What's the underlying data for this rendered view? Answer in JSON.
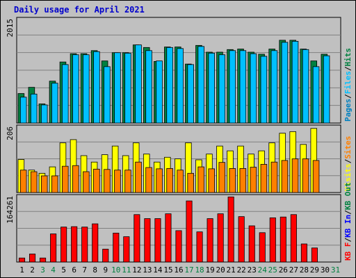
{
  "chart_data": [
    {
      "type": "bar",
      "title": "Daily usage for April 2021",
      "ymax_label": "2015",
      "ylim": [
        0,
        2015
      ],
      "grid": true,
      "legend": {
        "position": "right",
        "entries": [
          "Pages",
          "Files",
          "Hits"
        ],
        "separator": "/"
      },
      "colors": {
        "Pages": "#0080c0",
        "Files": "#00c0ff",
        "Hits": "#008040"
      },
      "categories": [
        "1",
        "2",
        "3",
        "4",
        "5",
        "6",
        "7",
        "8",
        "9",
        "10",
        "11",
        "12",
        "13",
        "14",
        "15",
        "16",
        "17",
        "18",
        "19",
        "20",
        "21",
        "22",
        "23",
        "24",
        "25",
        "26",
        "27",
        "28",
        "29",
        "30",
        "31"
      ],
      "series": [
        {
          "name": "Hits",
          "values": [
            570,
            690,
            370,
            810,
            1180,
            1340,
            1340,
            1400,
            1200,
            1360,
            1360,
            1510,
            1460,
            1190,
            1470,
            1470,
            1140,
            1500,
            1370,
            1370,
            1420,
            1430,
            1370,
            1330,
            1430,
            1600,
            1600,
            1430,
            1200,
            1330,
            0
          ]
        },
        {
          "name": "Files",
          "values": [
            500,
            560,
            350,
            770,
            1130,
            1320,
            1320,
            1380,
            1090,
            1360,
            1350,
            1510,
            1400,
            1200,
            1460,
            1440,
            1130,
            1480,
            1350,
            1320,
            1400,
            1400,
            1340,
            1290,
            1400,
            1560,
            1580,
            1420,
            1090,
            1300,
            0
          ]
        }
      ]
    },
    {
      "type": "bar",
      "ymax_label": "206",
      "ylim": [
        0,
        206
      ],
      "grid": true,
      "legend": {
        "position": "right",
        "entries": [
          "Visits",
          "Sites"
        ],
        "separator": "/"
      },
      "colors": {
        "Visits": "#ffff00",
        "Sites": "#ff8000"
      },
      "categories": [
        "1",
        "2",
        "3",
        "4",
        "5",
        "6",
        "7",
        "8",
        "9",
        "10",
        "11",
        "12",
        "13",
        "14",
        "15",
        "16",
        "17",
        "18",
        "19",
        "20",
        "21",
        "22",
        "23",
        "24",
        "25",
        "26",
        "27",
        "28",
        "29",
        "30",
        "31"
      ],
      "series": [
        {
          "name": "Visits",
          "values": [
            103,
            70,
            60,
            80,
            155,
            165,
            115,
            95,
            118,
            145,
            115,
            155,
            120,
            95,
            110,
            105,
            155,
            102,
            120,
            145,
            130,
            145,
            120,
            130,
            155,
            185,
            190,
            150,
            200,
            0,
            0
          ]
        },
        {
          "name": "Sites",
          "values": [
            70,
            65,
            52,
            52,
            82,
            84,
            65,
            73,
            72,
            70,
            70,
            95,
            78,
            74,
            75,
            70,
            60,
            80,
            74,
            94,
            75,
            75,
            79,
            88,
            95,
            100,
            105,
            105,
            100,
            0,
            0
          ]
        }
      ]
    },
    {
      "type": "bar",
      "ymax_label": "164261",
      "ylim": [
        0,
        164261
      ],
      "grid": true,
      "legend": {
        "position": "right",
        "entries": [
          "KB F",
          "KB In",
          "KB Out"
        ],
        "separator": "/"
      },
      "colors": {
        "KB F": "#ff0000",
        "KB In": "#0000ff",
        "KB Out": "#008040"
      },
      "categories": [
        "1",
        "2",
        "3",
        "4",
        "5",
        "6",
        "7",
        "8",
        "9",
        "10",
        "11",
        "12",
        "13",
        "14",
        "15",
        "16",
        "17",
        "18",
        "19",
        "20",
        "21",
        "22",
        "23",
        "24",
        "25",
        "26",
        "27",
        "28",
        "29",
        "30",
        "31"
      ],
      "series": [
        {
          "name": "KB F",
          "values": [
            10000,
            20000,
            10000,
            70000,
            87000,
            88000,
            87000,
            95000,
            32000,
            72000,
            63000,
            118000,
            108000,
            108000,
            120000,
            78000,
            152000,
            75000,
            108000,
            120000,
            162000,
            113000,
            90000,
            73000,
            110000,
            112000,
            118000,
            45000,
            35000,
            0,
            0
          ]
        }
      ]
    }
  ],
  "x_axis": {
    "ticks": [
      "1",
      "2",
      "3",
      "4",
      "5",
      "6",
      "7",
      "8",
      "9",
      "10",
      "11",
      "12",
      "13",
      "14",
      "15",
      "16",
      "17",
      "18",
      "19",
      "20",
      "21",
      "22",
      "23",
      "24",
      "25",
      "26",
      "27",
      "28",
      "29",
      "30",
      "31"
    ],
    "weekend_days": [
      "3",
      "4",
      "10",
      "11",
      "17",
      "18",
      "24",
      "25",
      "31"
    ],
    "weekday_color": "#000000",
    "weekend_color": "#008040"
  }
}
